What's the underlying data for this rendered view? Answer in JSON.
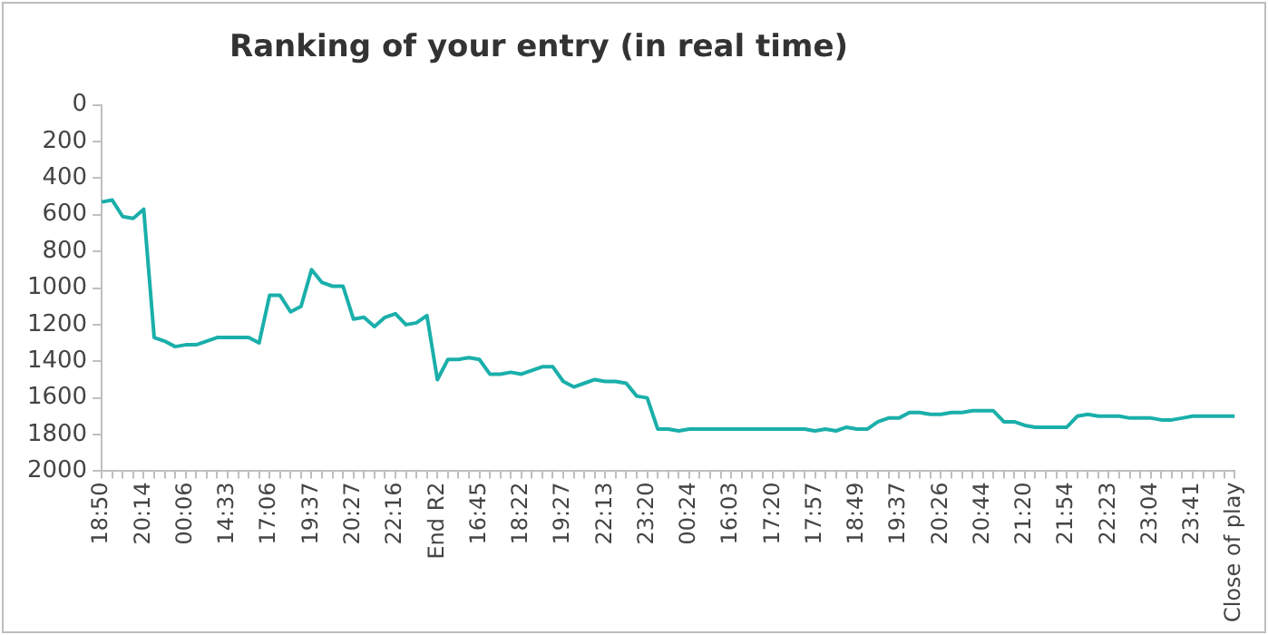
{
  "chart_data": {
    "type": "line",
    "title": "Ranking of your entry (in real time)",
    "categories": [
      "18:50",
      null,
      null,
      null,
      "20:14",
      null,
      null,
      null,
      "00:06",
      null,
      null,
      null,
      "14:33",
      null,
      null,
      null,
      "17:06",
      null,
      null,
      null,
      "19:37",
      null,
      null,
      null,
      "20:27",
      null,
      null,
      null,
      "22:16",
      null,
      null,
      null,
      "End R2",
      null,
      null,
      null,
      "16:45",
      null,
      null,
      null,
      "18:22",
      null,
      null,
      null,
      "19:27",
      null,
      null,
      null,
      "22:13",
      null,
      null,
      null,
      "23:20",
      null,
      null,
      null,
      "00:24",
      null,
      null,
      null,
      "16:03",
      null,
      null,
      null,
      "17:20",
      null,
      null,
      null,
      "17:57",
      null,
      null,
      null,
      "18:49",
      null,
      null,
      null,
      "19:37",
      null,
      null,
      null,
      "20:26",
      null,
      null,
      null,
      "20:44",
      null,
      null,
      null,
      "21:20",
      null,
      null,
      null,
      "21:54",
      null,
      null,
      null,
      "22:23",
      null,
      null,
      null,
      "23:04",
      null,
      null,
      null,
      "23:41",
      null,
      null,
      null,
      "Close of play"
    ],
    "series": [
      {
        "color": "#1aafaa",
        "values": [
          530,
          520,
          610,
          620,
          570,
          1270,
          1290,
          1320,
          1310,
          1310,
          1290,
          1270,
          1270,
          1270,
          1270,
          1300,
          1040,
          1040,
          1130,
          1100,
          900,
          970,
          990,
          990,
          1170,
          1160,
          1210,
          1160,
          1140,
          1200,
          1190,
          1150,
          1500,
          1390,
          1390,
          1380,
          1390,
          1470,
          1470,
          1460,
          1470,
          1450,
          1430,
          1430,
          1510,
          1540,
          1520,
          1500,
          1510,
          1510,
          1520,
          1590,
          1600,
          1770,
          1770,
          1780,
          1770,
          1770,
          1770,
          1770,
          1770,
          1770,
          1770,
          1770,
          1770,
          1770,
          1770,
          1770,
          1780,
          1770,
          1780,
          1760,
          1770,
          1770,
          1730,
          1710,
          1710,
          1680,
          1680,
          1690,
          1690,
          1680,
          1680,
          1670,
          1670,
          1670,
          1730,
          1730,
          1750,
          1760,
          1760,
          1760,
          1760,
          1700,
          1690,
          1700,
          1700,
          1700,
          1710,
          1710,
          1710,
          1720,
          1720,
          1710,
          1700,
          1700,
          1700,
          1700,
          1700
        ]
      }
    ],
    "ylim": [
      2000,
      0
    ],
    "yticks": [
      0,
      200,
      400,
      600,
      800,
      1000,
      1200,
      1400,
      1600,
      1800,
      2000
    ],
    "grid": false,
    "legend": false,
    "marker": "none",
    "line_style": "solid"
  }
}
